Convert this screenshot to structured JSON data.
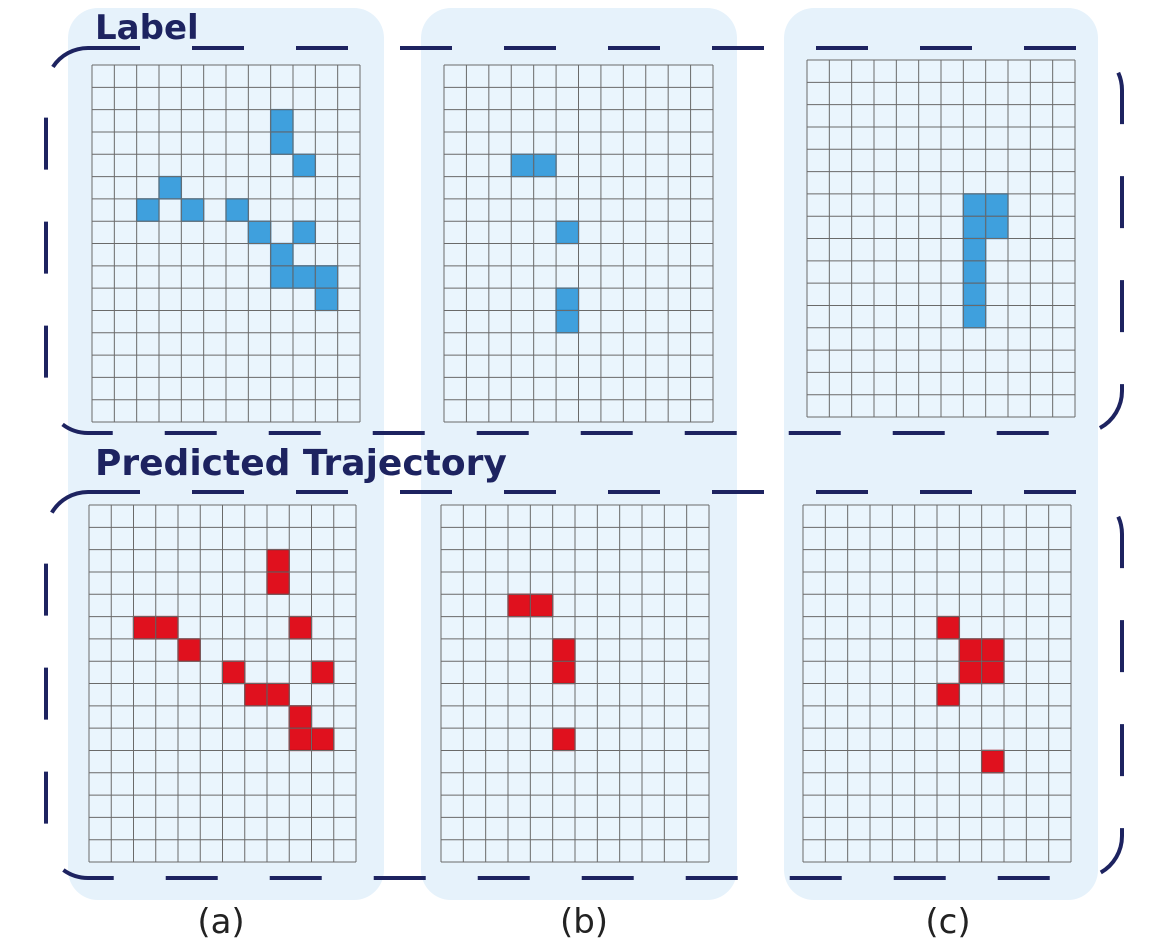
{
  "row_titles": {
    "label": "Label",
    "predicted": "Predicted Trajectory"
  },
  "columns": [
    {
      "caption": "(a)"
    },
    {
      "caption": "(b)"
    },
    {
      "caption": "(c)"
    }
  ],
  "grid": {
    "cols": 12,
    "rows": 16
  },
  "colors": {
    "panel_bg": "#e6f2fb",
    "cell_bg": "#eaf5fd",
    "grid_line": "#6a6a6a",
    "label_cell": "#3fa0dd",
    "label_cell_edge": "#2f85c2",
    "predicted_cell": "#e0111e",
    "predicted_cell_edge": "#a80d18",
    "dash": "#1d2360"
  },
  "label_cells": [
    [
      [
        8,
        2
      ],
      [
        8,
        3
      ],
      [
        9,
        4
      ],
      [
        3,
        5
      ],
      [
        2,
        6
      ],
      [
        4,
        6
      ],
      [
        6,
        6
      ],
      [
        7,
        7
      ],
      [
        9,
        7
      ],
      [
        8,
        8
      ],
      [
        8,
        9
      ],
      [
        9,
        9
      ],
      [
        10,
        9
      ],
      [
        10,
        10
      ]
    ],
    [
      [
        3,
        4
      ],
      [
        4,
        4
      ],
      [
        5,
        7
      ],
      [
        5,
        10
      ],
      [
        5,
        11
      ]
    ],
    [
      [
        7,
        6
      ],
      [
        8,
        6
      ],
      [
        7,
        7
      ],
      [
        8,
        7
      ],
      [
        7,
        8
      ],
      [
        7,
        9
      ],
      [
        7,
        10
      ],
      [
        7,
        11
      ]
    ]
  ],
  "predicted_cells": [
    [
      [
        8,
        2
      ],
      [
        8,
        3
      ],
      [
        2,
        5
      ],
      [
        3,
        5
      ],
      [
        9,
        5
      ],
      [
        4,
        6
      ],
      [
        6,
        7
      ],
      [
        10,
        7
      ],
      [
        7,
        8
      ],
      [
        8,
        8
      ],
      [
        9,
        9
      ],
      [
        9,
        10
      ],
      [
        10,
        10
      ]
    ],
    [
      [
        3,
        4
      ],
      [
        4,
        4
      ],
      [
        5,
        6
      ],
      [
        5,
        7
      ],
      [
        5,
        10
      ]
    ],
    [
      [
        6,
        5
      ],
      [
        7,
        6
      ],
      [
        8,
        6
      ],
      [
        7,
        7
      ],
      [
        8,
        7
      ],
      [
        6,
        8
      ],
      [
        8,
        11
      ]
    ]
  ]
}
